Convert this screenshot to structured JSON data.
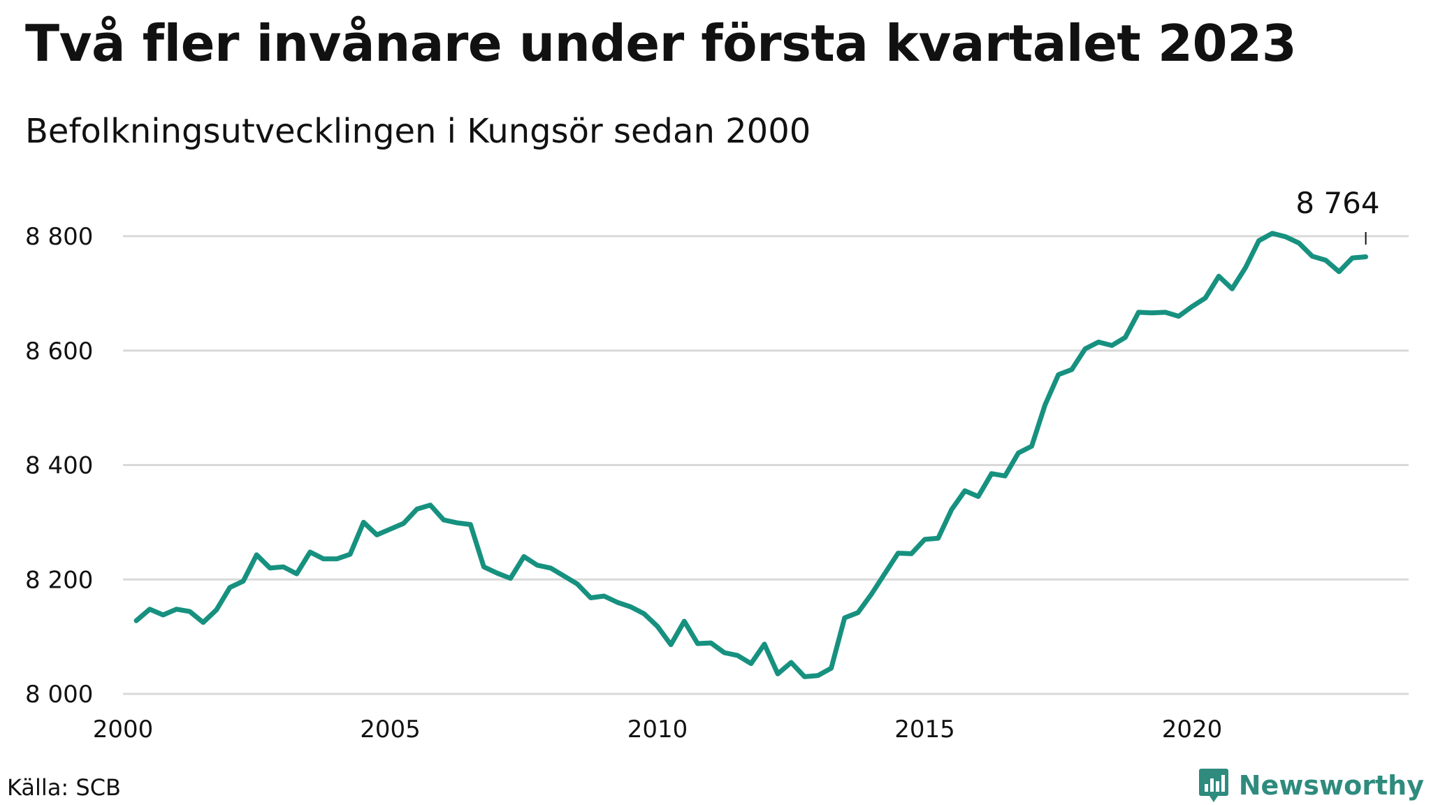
{
  "title": "Två fler invånare under första kvartalet 2023",
  "subtitle": "Befolkningsutvecklingen i Kungsör sedan 2000",
  "source": "Källa: SCB",
  "brand": {
    "name": "Newsworthy",
    "icon": "newsworthy-logo-icon"
  },
  "colors": {
    "line": "#17917f",
    "grid": "#d9d9d9",
    "text": "#111111",
    "brand": "#2e8b7e"
  },
  "chart_data": {
    "type": "line",
    "title": "Två fler invånare under första kvartalet 2023",
    "subtitle": "Befolkningsutvecklingen i Kungsör sedan 2000",
    "xlabel": "",
    "ylabel": "",
    "xlim": [
      2000,
      2024
    ],
    "ylim": [
      8000,
      8850
    ],
    "grid": true,
    "x_ticks": [
      2000,
      2005,
      2010,
      2015,
      2020
    ],
    "x_tick_labels": [
      "2000",
      "2005",
      "2010",
      "2015",
      "2020"
    ],
    "y_ticks": [
      8000,
      8200,
      8400,
      8600,
      8800
    ],
    "y_tick_labels": [
      "8 000",
      "8 200",
      "8 400",
      "8 600",
      "8 800"
    ],
    "end_label": "8 764",
    "series": [
      {
        "x": [
          2000.25,
          2000.5,
          2000.75,
          2001,
          2001.25,
          2001.5,
          2001.75,
          2002,
          2002.25,
          2002.5,
          2002.75,
          2003,
          2003.25,
          2003.5,
          2003.75,
          2004,
          2004.25,
          2004.5,
          2004.75,
          2005,
          2005.25,
          2005.5,
          2005.75,
          2006,
          2006.25,
          2006.5,
          2006.75,
          2007,
          2007.25,
          2007.5,
          2007.75,
          2008,
          2008.25,
          2008.5,
          2008.75,
          2009,
          2009.25,
          2009.5,
          2009.75,
          2010,
          2010.25,
          2010.5,
          2010.75,
          2011,
          2011.25,
          2011.5,
          2011.75,
          2012,
          2012.25,
          2012.5,
          2012.75,
          2013,
          2013.25,
          2013.5,
          2013.75,
          2014,
          2014.25,
          2014.5,
          2014.75,
          2015,
          2015.25,
          2015.5,
          2015.75,
          2016,
          2016.25,
          2016.5,
          2016.75,
          2017,
          2017.25,
          2017.5,
          2017.75,
          2018,
          2018.25,
          2018.5,
          2018.75,
          2019,
          2019.25,
          2019.5,
          2019.75,
          2020,
          2020.25,
          2020.5,
          2020.75,
          2021,
          2021.25,
          2021.5,
          2021.75,
          2022,
          2022.25,
          2022.5,
          2022.75,
          2023,
          2023.25
        ],
        "values": [
          8128,
          8148,
          8138,
          8148,
          8144,
          8125,
          8147,
          8186,
          8197,
          8243,
          8220,
          8222,
          8210,
          8248,
          8236,
          8236,
          8244,
          8300,
          8278,
          8288,
          8298,
          8323,
          8330,
          8304,
          8299,
          8296,
          8222,
          8211,
          8202,
          8240,
          8225,
          8220,
          8206,
          8192,
          8168,
          8171,
          8160,
          8152,
          8140,
          8118,
          8086,
          8127,
          8088,
          8089,
          8072,
          8067,
          8053,
          8087,
          8035,
          8055,
          8030,
          8032,
          8045,
          8133,
          8142,
          8174,
          8210,
          8246,
          8245,
          8270,
          8272,
          8322,
          8355,
          8345,
          8385,
          8381,
          8421,
          8433,
          8505,
          8558,
          8567,
          8603,
          8615,
          8609,
          8623,
          8667,
          8666,
          8667,
          8660,
          8677,
          8692,
          8730,
          8708,
          8745,
          8792,
          8805,
          8799,
          8788,
          8765,
          8758,
          8738,
          8762,
          8764
        ]
      }
    ]
  }
}
